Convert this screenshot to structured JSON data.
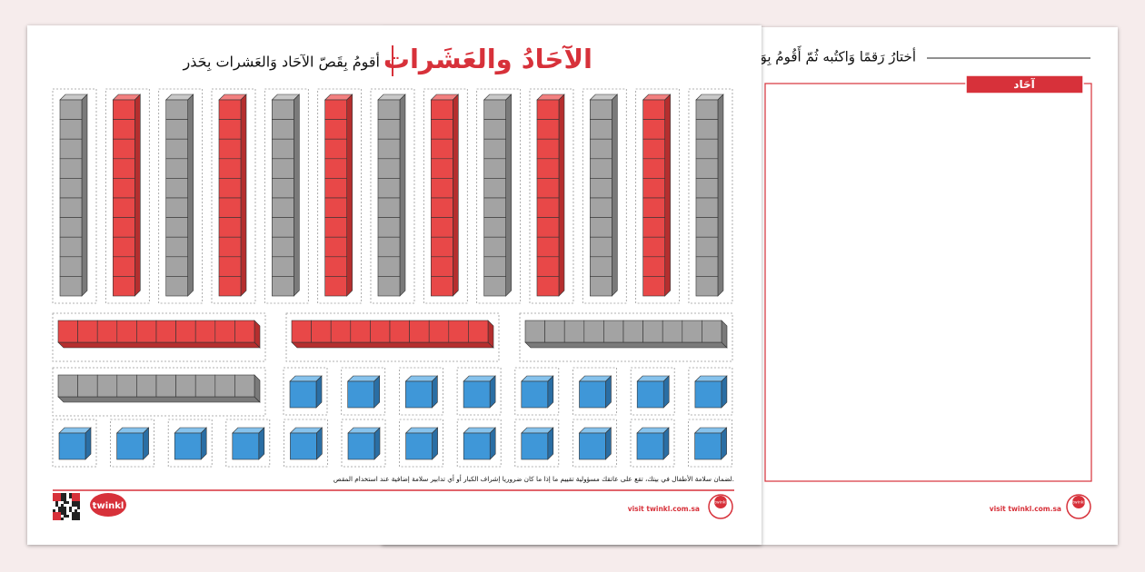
{
  "front_page": {
    "title": "الآحَادُ والعَشَرات",
    "subtitle": "أقومُ بِقَصّ الآحَاد وَالعَشرات بِحَذر",
    "safety_note": "لضمان سلامة الأطفال في بيتك، تقع على عاتقك مسؤولية تقييم ما إذا ما كان ضروريا إشراف الكبار أو أي تدابير سلامة إضافية عند استخدام المقص.",
    "logo": "twinkl",
    "website": "visit twinkl.com.sa",
    "badge": "twinkl"
  },
  "back_page": {
    "instruction": "أختارُ رَقمًا وَاكتُبه ثُمّ أَقُومُ بِوَ",
    "box_label": "آحَاد",
    "website": "visit twinkl.com.sa",
    "badge": "twinkl"
  }
}
